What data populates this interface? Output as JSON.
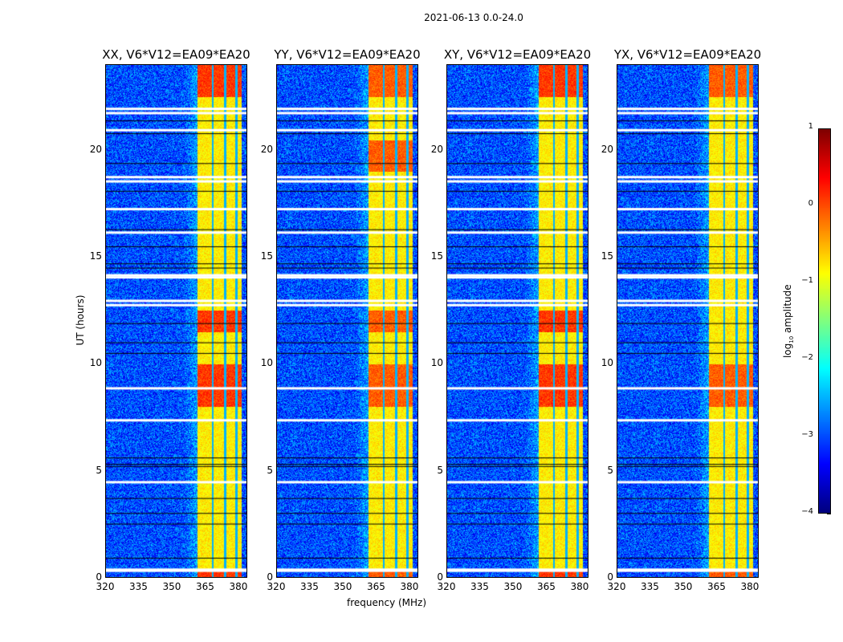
{
  "chart_data": {
    "type": "heatmap",
    "title": "2021-06-13 0.0-24.0",
    "xlabel": "frequency (MHz)",
    "ylabel": "UT (hours)",
    "xlim": [
      320,
      384
    ],
    "ylim": [
      0,
      24
    ],
    "xticks": [
      320,
      335,
      350,
      365,
      380
    ],
    "yticks": [
      0,
      5,
      10,
      15,
      20
    ],
    "panels": [
      {
        "title": "XX, V6*V12=EA09*EA20"
      },
      {
        "title": "YY, V6*V12=EA09*EA20"
      },
      {
        "title": "XY, V6*V12=EA09*EA20"
      },
      {
        "title": "YX, V6*V12=EA09*EA20"
      }
    ],
    "colorbar": {
      "label": "log10 amplitude",
      "label_main": "log",
      "label_sub": "10",
      "label_rest": " amplitude",
      "colormap": "jet",
      "clim": [
        -4,
        1
      ],
      "ticks": [
        1,
        0,
        -1,
        -2,
        -3,
        -4
      ],
      "tick_labels": [
        "1",
        "0",
        "−1",
        "−2",
        "−3",
        "−4"
      ]
    },
    "background_level": -3,
    "bright_band_mhz": [
      361.5,
      381.5
    ],
    "bright_band_level": -0.8,
    "band_gaps_mhz": [
      368.5,
      374.2,
      379.3
    ],
    "flagged_white_hours": [
      0.35,
      0.4,
      4.5,
      7.4,
      8.9,
      12.8,
      13.0,
      14.1,
      14.2,
      16.2,
      17.3,
      18.6,
      18.8,
      21.0,
      21.8,
      22.0
    ],
    "dropout_black_hours": [
      0.9,
      2.5,
      3.0,
      3.7,
      5.2,
      5.3,
      5.6,
      10.5,
      11.0,
      11.9,
      14.5,
      14.7,
      15.5,
      16.3,
      18.1,
      19.4,
      20.8,
      21.4
    ]
  }
}
